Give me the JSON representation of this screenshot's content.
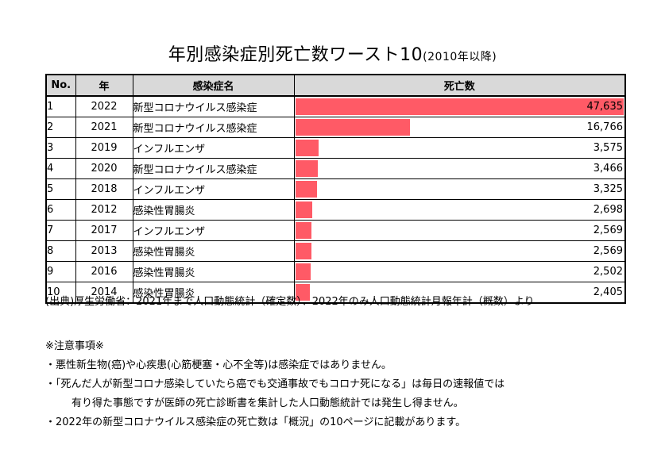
{
  "title": {
    "main": "年別感染症別死亡数ワースト10",
    "sub": "(2010年以降)"
  },
  "table": {
    "headers": {
      "no": "No.",
      "year": "年",
      "disease": "感染症名",
      "deaths": "死亡数"
    },
    "max_deaths": 47635,
    "rows": [
      {
        "no": "1",
        "year": "2022",
        "disease": "新型コロナウイルス感染症",
        "deaths": 47635,
        "deaths_label": "47,635"
      },
      {
        "no": "2",
        "year": "2021",
        "disease": "新型コロナウイルス感染症",
        "deaths": 16766,
        "deaths_label": "16,766"
      },
      {
        "no": "3",
        "year": "2019",
        "disease": "インフルエンザ",
        "deaths": 3575,
        "deaths_label": "3,575"
      },
      {
        "no": "4",
        "year": "2020",
        "disease": "新型コロナウイルス感染症",
        "deaths": 3466,
        "deaths_label": "3,466"
      },
      {
        "no": "5",
        "year": "2018",
        "disease": "インフルエンザ",
        "deaths": 3325,
        "deaths_label": "3,325"
      },
      {
        "no": "6",
        "year": "2012",
        "disease": "感染性胃腸炎",
        "deaths": 2698,
        "deaths_label": "2,698"
      },
      {
        "no": "7",
        "year": "2017",
        "disease": "インフルエンザ",
        "deaths": 2569,
        "deaths_label": "2,569"
      },
      {
        "no": "8",
        "year": "2013",
        "disease": "感染性胃腸炎",
        "deaths": 2569,
        "deaths_label": "2,569"
      },
      {
        "no": "9",
        "year": "2016",
        "disease": "感染性胃腸炎",
        "deaths": 2502,
        "deaths_label": "2,502"
      },
      {
        "no": "10",
        "year": "2014",
        "disease": "感染性胃腸炎",
        "deaths": 2405,
        "deaths_label": "2,405"
      }
    ],
    "bar_color": "#ff5a66",
    "header_bg": "#d9d9d9"
  },
  "source": "(出典)厚生労働省：2021年まで人口動態統計（確定数）、2022年のみ人口動態統計月報年計（概数）より",
  "notes": {
    "heading": "※注意事項※",
    "items": [
      "・悪性新生物(癌)や心疾患(心筋梗塞・心不全等)は感染症ではありません。",
      "・「死んだ人が新型コロナ感染していたら癌でも交通事故でもコロナ死になる」は毎日の速報値では",
      "有り得た事態ですが医師の死亡診断書を集計した人口動態統計では発生し得ません。",
      "・2022年の新型コロナウイルス感染症の死亡数は「概況」の10ページに記載があります。"
    ]
  }
}
